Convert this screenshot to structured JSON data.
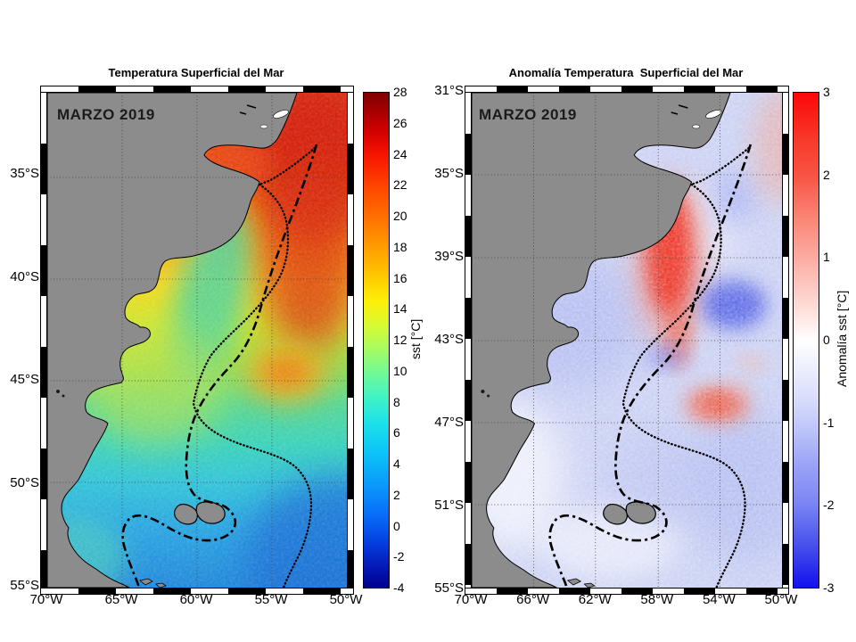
{
  "figure": {
    "background": "#ffffff",
    "land_color": "#8c8c8c",
    "left_panel": {
      "title": "Temperatura Superficial del Mar",
      "date_label": "MARZO 2019",
      "y_tick_labels": [
        "35°S",
        "40°S",
        "45°S",
        "50°S",
        "55°S"
      ],
      "x_tick_labels": [
        "70°W",
        "65°W",
        "60°W",
        "55°W",
        "50°W"
      ],
      "colorbar": {
        "label": "sst [°C]",
        "tick_labels": [
          "28",
          "26",
          "24",
          "22",
          "20",
          "18",
          "16",
          "14",
          "12",
          "10",
          "8",
          "6",
          "4",
          "2",
          "0",
          "-2",
          "-4"
        ],
        "top_color": "#7f0000",
        "bottom_color": "#00008f",
        "palette": "jet"
      }
    },
    "right_panel": {
      "title": "Anomalía Temperatura  Superficial del Mar",
      "date_label": "MARZO 2019",
      "y_tick_labels": [
        "31°S",
        "35°S",
        "39°S",
        "43°S",
        "47°S",
        "51°S",
        "55°S"
      ],
      "x_tick_labels": [
        "70°W",
        "66°W",
        "62°W",
        "58°W",
        "54°W",
        "50°W"
      ],
      "colorbar": {
        "label": "Anomalía sst [°C]",
        "tick_labels": [
          "3",
          "2",
          "1",
          "0",
          "-1",
          "-2",
          "-3"
        ],
        "top_color": "#fa0808",
        "middle_color": "#ffffff",
        "bottom_color": "#1410ef",
        "palette": "red-white-blue"
      }
    }
  },
  "chart_data": [
    {
      "type": "heatmap",
      "title": "Temperatura Superficial del Mar",
      "period": "MARZO 2019",
      "region": "Southwest Atlantic / Argentine continental shelf",
      "x_axis": {
        "ticks": [
          "70°W",
          "65°W",
          "60°W",
          "55°W",
          "50°W"
        ],
        "range_deg_west": [
          70,
          50
        ]
      },
      "y_axis": {
        "ticks": [
          "35°S",
          "40°S",
          "45°S",
          "50°S",
          "55°S"
        ],
        "range_deg_south": [
          31,
          55
        ]
      },
      "colorbar": {
        "label": "sst [°C]",
        "min": -4,
        "max": 28,
        "tick_interval": 2,
        "palette": "jet"
      },
      "grid": true,
      "field_features": [
        "22-26 °C warm red water in the northeast and off the Río de la Plata estuary",
        "cold 10-14 °C green tongue (Malvinas current) along the shelf break near 39-43°S",
        "16-18 °C warm orange eddy near 45.5°S 52-54°W",
        "4-10 °C cyan-blue water south of 48°S, coldest (dark blue) in the southeast corner",
        "dash-dot shelf-break contour and dotted offshore contour",
        "gray land: Argentina, Uruguay and Malvinas/Falkland Islands (~51.5°S)"
      ]
    },
    {
      "type": "heatmap",
      "title": "Anomalía Temperatura  Superficial del Mar",
      "period": "MARZO 2019",
      "region": "Southwest Atlantic / Argentine continental shelf",
      "x_axis": {
        "ticks": [
          "70°W",
          "66°W",
          "62°W",
          "58°W",
          "54°W",
          "50°W"
        ],
        "range_deg_west": [
          70,
          50
        ]
      },
      "y_axis": {
        "ticks": [
          "31°S",
          "35°S",
          "39°S",
          "43°S",
          "47°S",
          "51°S",
          "55°S"
        ],
        "range_deg_south": [
          31,
          55
        ]
      },
      "colorbar": {
        "label": "Anomalía sst [°C]",
        "min": -3,
        "max": 3,
        "tick_interval": 1,
        "palette": "red-white-blue"
      },
      "grid": true,
      "field_features": [
        "weak negative anomaly (-0.5 to -1 °C, pale blue) over most of the shelf",
        "strong positive anomaly (+1.5 to +2.5 °C, red plume) along the shelf break near 38-43°S, 54-55°W",
        "negative anomaly patch (~-2 °C, dark blue) east of the warm plume near 42°S 51-53°W",
        "moderate positive anomaly (~+1 °C) near 45.5°S 52-54°W",
        "near-zero (white) patches close to the coast and southwest corner"
      ]
    }
  ]
}
